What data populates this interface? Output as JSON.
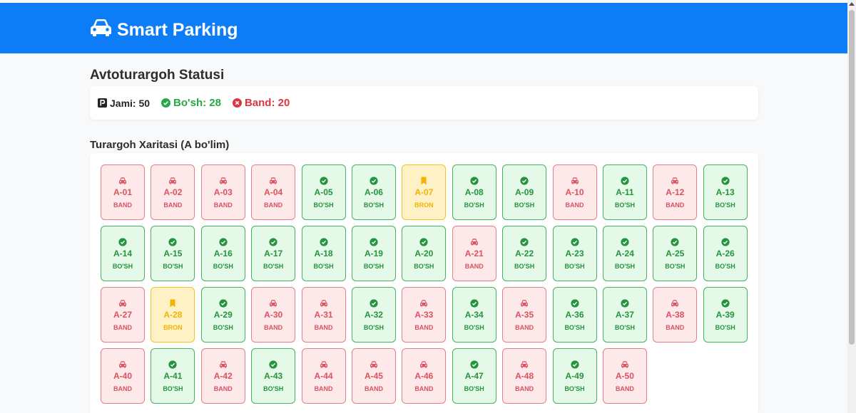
{
  "app": {
    "title": "Smart Parking"
  },
  "page": {
    "title": "Avtoturargoh Statusi"
  },
  "stats": {
    "total_label": "Jami: 50",
    "free_label": "Bo'sh: 28",
    "busy_label": "Band: 20"
  },
  "map": {
    "title": "Turargoh Xaritasi (A bo'lim)"
  },
  "colors": {
    "navbar": "#0d7cf7",
    "band": "#dc3545",
    "bosh": "#28a745",
    "bron": "#ffc107"
  },
  "spots": [
    {
      "id": "A-01",
      "status": "BAND",
      "type": "band"
    },
    {
      "id": "A-02",
      "status": "BAND",
      "type": "band"
    },
    {
      "id": "A-03",
      "status": "BAND",
      "type": "band"
    },
    {
      "id": "A-04",
      "status": "BAND",
      "type": "band"
    },
    {
      "id": "A-05",
      "status": "BO'SH",
      "type": "bosh"
    },
    {
      "id": "A-06",
      "status": "BO'SH",
      "type": "bosh"
    },
    {
      "id": "A-07",
      "status": "BRON",
      "type": "bron"
    },
    {
      "id": "A-08",
      "status": "BO'SH",
      "type": "bosh"
    },
    {
      "id": "A-09",
      "status": "BO'SH",
      "type": "bosh"
    },
    {
      "id": "A-10",
      "status": "BAND",
      "type": "band"
    },
    {
      "id": "A-11",
      "status": "BO'SH",
      "type": "bosh"
    },
    {
      "id": "A-12",
      "status": "BAND",
      "type": "band"
    },
    {
      "id": "A-13",
      "status": "BO'SH",
      "type": "bosh"
    },
    {
      "id": "A-14",
      "status": "BO'SH",
      "type": "bosh"
    },
    {
      "id": "A-15",
      "status": "BO'SH",
      "type": "bosh"
    },
    {
      "id": "A-16",
      "status": "BO'SH",
      "type": "bosh"
    },
    {
      "id": "A-17",
      "status": "BO'SH",
      "type": "bosh"
    },
    {
      "id": "A-18",
      "status": "BO'SH",
      "type": "bosh"
    },
    {
      "id": "A-19",
      "status": "BO'SH",
      "type": "bosh"
    },
    {
      "id": "A-20",
      "status": "BO'SH",
      "type": "bosh"
    },
    {
      "id": "A-21",
      "status": "BAND",
      "type": "band"
    },
    {
      "id": "A-22",
      "status": "BO'SH",
      "type": "bosh"
    },
    {
      "id": "A-23",
      "status": "BO'SH",
      "type": "bosh"
    },
    {
      "id": "A-24",
      "status": "BO'SH",
      "type": "bosh"
    },
    {
      "id": "A-25",
      "status": "BO'SH",
      "type": "bosh"
    },
    {
      "id": "A-26",
      "status": "BO'SH",
      "type": "bosh"
    },
    {
      "id": "A-27",
      "status": "BAND",
      "type": "band"
    },
    {
      "id": "A-28",
      "status": "BRON",
      "type": "bron"
    },
    {
      "id": "A-29",
      "status": "BO'SH",
      "type": "bosh"
    },
    {
      "id": "A-30",
      "status": "BAND",
      "type": "band"
    },
    {
      "id": "A-31",
      "status": "BAND",
      "type": "band"
    },
    {
      "id": "A-32",
      "status": "BO'SH",
      "type": "bosh"
    },
    {
      "id": "A-33",
      "status": "BAND",
      "type": "band"
    },
    {
      "id": "A-34",
      "status": "BO'SH",
      "type": "bosh"
    },
    {
      "id": "A-35",
      "status": "BAND",
      "type": "band"
    },
    {
      "id": "A-36",
      "status": "BO'SH",
      "type": "bosh"
    },
    {
      "id": "A-37",
      "status": "BO'SH",
      "type": "bosh"
    },
    {
      "id": "A-38",
      "status": "BAND",
      "type": "band"
    },
    {
      "id": "A-39",
      "status": "BO'SH",
      "type": "bosh"
    },
    {
      "id": "A-40",
      "status": "BAND",
      "type": "band"
    },
    {
      "id": "A-41",
      "status": "BO'SH",
      "type": "bosh"
    },
    {
      "id": "A-42",
      "status": "BAND",
      "type": "band"
    },
    {
      "id": "A-43",
      "status": "BO'SH",
      "type": "bosh"
    },
    {
      "id": "A-44",
      "status": "BAND",
      "type": "band"
    },
    {
      "id": "A-45",
      "status": "BAND",
      "type": "band"
    },
    {
      "id": "A-46",
      "status": "BAND",
      "type": "band"
    },
    {
      "id": "A-47",
      "status": "BO'SH",
      "type": "bosh"
    },
    {
      "id": "A-48",
      "status": "BAND",
      "type": "band"
    },
    {
      "id": "A-49",
      "status": "BO'SH",
      "type": "bosh"
    },
    {
      "id": "A-50",
      "status": "BAND",
      "type": "band"
    }
  ]
}
